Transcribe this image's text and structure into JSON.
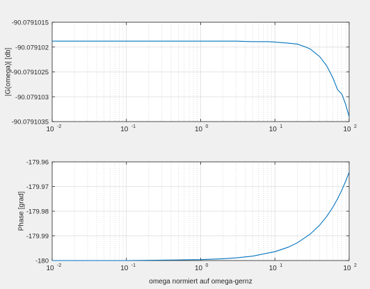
{
  "chart_data": [
    {
      "type": "line",
      "xscale": "log",
      "xlim": [
        0.01,
        100
      ],
      "ylim": [
        -90.0791035,
        -90.0791015
      ],
      "ylabel": "|G(omega)| [db]",
      "xlabel": "",
      "grid": true,
      "xtick_bases": [
        "10",
        "10",
        "10",
        "10",
        "10"
      ],
      "xtick_exps": [
        "-2",
        "-1",
        "0",
        "1",
        "2"
      ],
      "xticks": [
        0.01,
        0.1,
        1,
        10,
        100
      ],
      "yticks": [
        -90.0791035,
        -90.079103,
        -90.0791025,
        -90.079102,
        -90.0791015
      ],
      "ytick_labels": [
        "-90.0791035",
        "-90.079103",
        "-90.0791025",
        "-90.079102",
        "-90.0791015"
      ],
      "series": [
        {
          "color": "#0072bd",
          "x": [
            0.01,
            0.1,
            1,
            3,
            5,
            8,
            10,
            15,
            20,
            25,
            30,
            40,
            50,
            60,
            70,
            80,
            90,
            100
          ],
          "y": [
            -90.07910188,
            -90.07910188,
            -90.07910188,
            -90.07910188,
            -90.07910189,
            -90.07910189,
            -90.0791019,
            -90.07910192,
            -90.07910194,
            -90.07910199,
            -90.07910204,
            -90.07910219,
            -90.07910238,
            -90.07910261,
            -90.07910286,
            -90.07910295,
            -90.07910316,
            -90.0791034
          ]
        }
      ]
    },
    {
      "type": "line",
      "xscale": "log",
      "xlim": [
        0.01,
        100
      ],
      "ylim": [
        -180,
        -179.96
      ],
      "ylabel": "Phase [grad]",
      "xlabel": "omega normiert auf omega-gernz",
      "grid": true,
      "xtick_bases": [
        "10",
        "10",
        "10",
        "10",
        "10"
      ],
      "xtick_exps": [
        "-2",
        "-1",
        "0",
        "1",
        "2"
      ],
      "xticks": [
        0.01,
        0.1,
        1,
        10,
        100
      ],
      "yticks": [
        -180,
        -179.99,
        -179.98,
        -179.97,
        -179.96
      ],
      "ytick_labels": [
        "-180",
        "-179.99",
        "-179.98",
        "-179.97",
        "-179.96"
      ],
      "series": [
        {
          "color": "#0072bd",
          "x": [
            0.01,
            0.1,
            1,
            2,
            3,
            5,
            10,
            15,
            20,
            30,
            40,
            50,
            60,
            70,
            80,
            90,
            100
          ],
          "y": [
            -180,
            -180,
            -179.99964,
            -179.99928,
            -179.99893,
            -179.99821,
            -179.99642,
            -179.99463,
            -179.99284,
            -179.98926,
            -179.98568,
            -179.9821,
            -179.97852,
            -179.97494,
            -179.97136,
            -179.96778,
            -179.9642
          ]
        }
      ]
    }
  ]
}
